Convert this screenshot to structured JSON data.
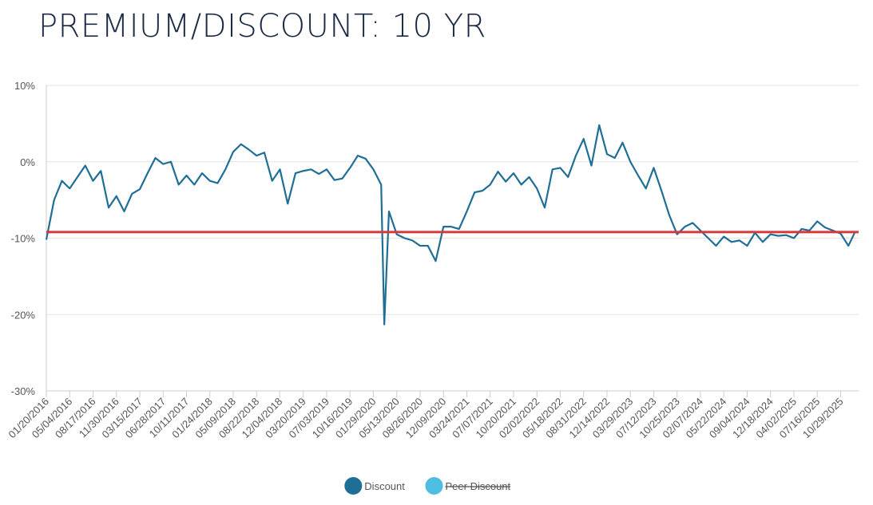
{
  "chart_data": {
    "type": "line",
    "title": "PREMIUM/DISCOUNT: 10 YR",
    "x": [
      "01/20/2016",
      "02/24/2016",
      "03/30/2016",
      "05/04/2016",
      "06/08/2016",
      "07/13/2016",
      "08/17/2016",
      "09/21/2016",
      "10/26/2016",
      "11/30/2016",
      "01/04/2017",
      "02/08/2017",
      "03/15/2017",
      "04/19/2017",
      "05/24/2017",
      "06/28/2017",
      "08/02/2017",
      "09/06/2017",
      "10/11/2017",
      "11/15/2017",
      "12/20/2017",
      "01/24/2018",
      "02/28/2018",
      "04/04/2018",
      "05/09/2018",
      "06/13/2018",
      "07/18/2018",
      "08/22/2018",
      "09/26/2018",
      "10/31/2018",
      "12/05/2018",
      "01/09/2019",
      "02/13/2019",
      "03/20/2019",
      "04/24/2019",
      "05/29/2019",
      "07/03/2019",
      "08/07/2019",
      "09/11/2019",
      "10/16/2019",
      "11/20/2019",
      "12/25/2019",
      "01/29/2020",
      "03/04/2020",
      "03/18/2020",
      "04/08/2020",
      "05/13/2020",
      "06/17/2020",
      "07/22/2020",
      "08/26/2020",
      "09/30/2020",
      "11/04/2020",
      "12/09/2020",
      "01/13/2021",
      "02/17/2021",
      "03/24/2021",
      "04/28/2021",
      "06/02/2021",
      "07/07/2021",
      "08/11/2021",
      "09/15/2021",
      "10/20/2021",
      "11/24/2021",
      "12/29/2021",
      "02/02/2022",
      "03/09/2022",
      "04/13/2022",
      "05/18/2022",
      "06/22/2022",
      "07/27/2022",
      "08/31/2022",
      "10/05/2022",
      "11/09/2022",
      "12/14/2022",
      "01/18/2023",
      "02/22/2023",
      "03/29/2023",
      "05/03/2023",
      "06/07/2023",
      "07/12/2023",
      "08/16/2023",
      "09/20/2023",
      "10/25/2023",
      "11/29/2023",
      "01/03/2024",
      "02/07/2024",
      "03/13/2024",
      "04/17/2024",
      "05/22/2024",
      "06/26/2024",
      "07/31/2024",
      "09/04/2024",
      "10/09/2024",
      "11/13/2024",
      "12/18/2024",
      "01/22/2025",
      "02/26/2025",
      "04/02/2025",
      "05/07/2025",
      "06/11/2025",
      "07/16/2025",
      "08/20/2025",
      "09/24/2025",
      "10/29/2025",
      "12/03/2025",
      "12/31/2025"
    ],
    "series": [
      {
        "name": "Discount",
        "color": "#1f6e96",
        "values": [
          -10.2,
          -5,
          -2.5,
          -3.5,
          -2,
          -0.5,
          -2.5,
          -1.2,
          -6,
          -4.5,
          -6.5,
          -4.2,
          -3.6,
          -1.5,
          0.5,
          -0.3,
          0,
          -3,
          -1.8,
          -3,
          -1.5,
          -2.5,
          -2.8,
          -1,
          1.3,
          2.3,
          1.6,
          0.8,
          1.2,
          -2.5,
          -1,
          -5.5,
          -1.5,
          -1.2,
          -1,
          -1.6,
          -1,
          -2.4,
          -2.2,
          -0.8,
          0.8,
          0.4,
          -1,
          -3,
          -21.3,
          -6.5,
          -9.5,
          -10,
          -10.3,
          -11,
          -11,
          -13,
          -8.5,
          -8.5,
          -8.8,
          -6.5,
          -4,
          -3.8,
          -3,
          -1.3,
          -2.6,
          -1.5,
          -3,
          -2,
          -3.5,
          -6,
          -1,
          -0.8,
          -2,
          0.8,
          3,
          -0.5,
          4.8,
          1,
          0.5,
          2.5,
          0,
          -1.8,
          -3.5,
          -0.8,
          -3.8,
          -7,
          -9.5,
          -8.5,
          -8,
          -9,
          -10,
          -11,
          -9.8,
          -10.5,
          -10.3,
          -11,
          -9.3,
          -10.5,
          -9.5,
          -9.7,
          -9.6,
          -10,
          -8.8,
          -9,
          -7.8,
          -8.6,
          -9,
          -9.4,
          -11,
          -9.3
        ]
      },
      {
        "name": "Peer Discount",
        "color": "#4dbde0",
        "hidden": true
      }
    ],
    "reference_line": {
      "value": -9.2,
      "color": "#d9383a"
    },
    "xlim": [
      "01/20/2016",
      "12/31/2025"
    ],
    "xticks": [
      "01/20/2016",
      "05/04/2016",
      "08/17/2016",
      "11/30/2016",
      "03/15/2017",
      "06/28/2017",
      "10/11/2017",
      "01/24/2018",
      "05/09/2018",
      "08/22/2018",
      "12/04/2018",
      "03/20/2019",
      "07/03/2019",
      "10/16/2019",
      "01/29/2020",
      "05/13/2020",
      "08/26/2020",
      "12/09/2020",
      "03/24/2021",
      "07/07/2021",
      "10/20/2021",
      "02/02/2022",
      "05/18/2022",
      "08/31/2022",
      "12/14/2022",
      "03/29/2023",
      "07/12/2023",
      "10/25/2023",
      "02/07/2024",
      "05/22/2024",
      "09/04/2024",
      "12/18/2024",
      "04/02/2025",
      "07/16/2025",
      "10/29/2025"
    ],
    "ylim": [
      -30,
      10
    ],
    "yticks": [
      {
        "value": -30,
        "label": "-30%"
      },
      {
        "value": -20,
        "label": "-20%"
      },
      {
        "value": -10,
        "label": "-10%"
      },
      {
        "value": 0,
        "label": "0%"
      },
      {
        "value": 10,
        "label": "10%"
      }
    ],
    "grid": true,
    "legend": "bottom"
  }
}
